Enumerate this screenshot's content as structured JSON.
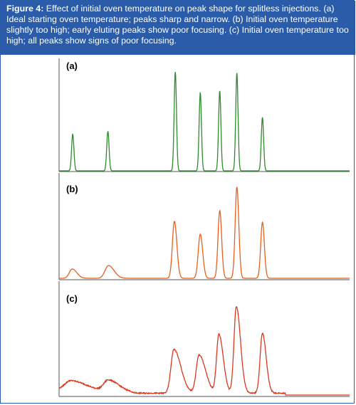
{
  "caption": {
    "label": "Figure 4:",
    "text": " Effect of initial oven temperature on peak shape for splitless injections. (a) Ideal starting oven temperature; peaks sharp and narrow. (b) Initial oven temperature slightly too high; early eluting peaks show poor focusing. (c) Initial oven temperature too high; all peaks show signs of poor focusing."
  },
  "colors": {
    "header_bg": "#2a5caa",
    "trace_a": "#2e8b2e",
    "trace_b": "#e8601c",
    "trace_c": "#d9381e"
  },
  "chart_data": [
    {
      "type": "line",
      "panel_label": "(a)",
      "title": "",
      "xlabel": "",
      "ylabel": "",
      "color": "#2e8b2e",
      "peaks": [
        {
          "position": 0.047,
          "height": 0.37,
          "width": 0.004,
          "tailing": 0.0
        },
        {
          "position": 0.168,
          "height": 0.4,
          "width": 0.004,
          "tailing": 0.0
        },
        {
          "position": 0.4,
          "height": 1.0,
          "width": 0.004,
          "tailing": 0.0
        },
        {
          "position": 0.486,
          "height": 0.79,
          "width": 0.004,
          "tailing": 0.0
        },
        {
          "position": 0.553,
          "height": 0.81,
          "width": 0.004,
          "tailing": 0.0
        },
        {
          "position": 0.612,
          "height": 0.99,
          "width": 0.004,
          "tailing": 0.0
        },
        {
          "position": 0.7,
          "height": 0.54,
          "width": 0.004,
          "tailing": 0.0
        }
      ]
    },
    {
      "type": "line",
      "panel_label": "(b)",
      "title": "",
      "xlabel": "",
      "ylabel": "",
      "color": "#e8601c",
      "peaks": [
        {
          "position": 0.045,
          "height": 0.095,
          "width": 0.01,
          "tailing": 0.6
        },
        {
          "position": 0.17,
          "height": 0.13,
          "width": 0.012,
          "tailing": 0.6
        },
        {
          "position": 0.397,
          "height": 0.58,
          "width": 0.007,
          "tailing": 0.2
        },
        {
          "position": 0.486,
          "height": 0.45,
          "width": 0.007,
          "tailing": 0.2
        },
        {
          "position": 0.553,
          "height": 0.69,
          "width": 0.006,
          "tailing": 0.1
        },
        {
          "position": 0.612,
          "height": 0.93,
          "width": 0.006,
          "tailing": 0.1
        },
        {
          "position": 0.7,
          "height": 0.57,
          "width": 0.006,
          "tailing": 0.1
        }
      ]
    },
    {
      "type": "line",
      "panel_label": "(c)",
      "title": "",
      "xlabel": "",
      "ylabel": "",
      "color": "#d9381e",
      "peaks": [
        {
          "position": 0.04,
          "height": 0.1,
          "width": 0.02,
          "tailing": 1.6
        },
        {
          "position": 0.17,
          "height": 0.12,
          "width": 0.016,
          "tailing": 1.2
        },
        {
          "position": 0.395,
          "height": 0.47,
          "width": 0.01,
          "tailing": 1.4
        },
        {
          "position": 0.482,
          "height": 0.41,
          "width": 0.01,
          "tailing": 1.2
        },
        {
          "position": 0.55,
          "height": 0.63,
          "width": 0.008,
          "tailing": 0.9
        },
        {
          "position": 0.61,
          "height": 0.93,
          "width": 0.008,
          "tailing": 0.8
        },
        {
          "position": 0.7,
          "height": 0.64,
          "width": 0.008,
          "tailing": 0.6
        }
      ]
    }
  ]
}
